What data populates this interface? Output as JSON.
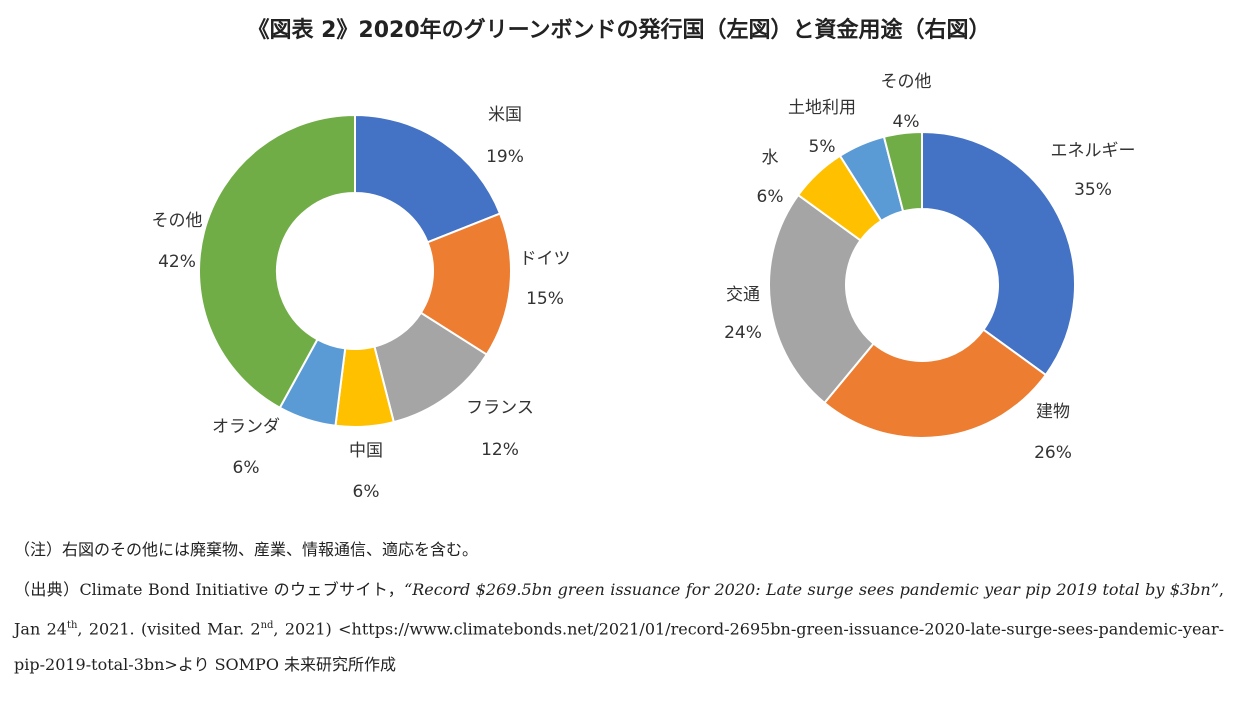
{
  "title": "《図表 2》2020年のグリーンボンドの発行国（左図）と資金用途（右図）",
  "chart_data": [
    {
      "type": "pie",
      "donut": true,
      "categories": [
        "米国",
        "ドイツ",
        "フランス",
        "中国",
        "オランダ",
        "その他"
      ],
      "values": [
        19,
        15,
        12,
        6,
        6,
        42
      ],
      "labels": [
        "19%",
        "15%",
        "12%",
        "6%",
        "6%",
        "42%"
      ],
      "colors": [
        "#4472C4",
        "#ED7D31",
        "#A5A5A5",
        "#FFC000",
        "#5B9BD5",
        "#70AD47"
      ],
      "legend": "none"
    },
    {
      "type": "pie",
      "donut": true,
      "categories": [
        "エネルギー",
        "建物",
        "交通",
        "水",
        "土地利用",
        "その他"
      ],
      "values": [
        35,
        26,
        24,
        6,
        5,
        4
      ],
      "labels": [
        "35%",
        "26%",
        "24%",
        "6%",
        "5%",
        "4%"
      ],
      "colors": [
        "#4472C4",
        "#ED7D31",
        "#A5A5A5",
        "#FFC000",
        "#5B9BD5",
        "#70AD47"
      ],
      "legend": "none"
    }
  ],
  "notes": {
    "note": "（注）右図のその他には廃棄物、産業、情報通信、適応を含む。",
    "source_prefix": "（出典）Climate Bond Initiative のウェブサイト，",
    "source_title": "“Record $269.5bn green issuance for 2020: Late surge sees pandemic year pip 2019 total by $3bn”",
    "source_date_a": ", Jan 24",
    "source_sup_a": "th",
    "source_date_b": ", 2021. (visited Mar. 2",
    "source_sup_b": "nd",
    "source_date_c": ", 2021) <https://www.climatebonds.net/2021/01/record-2695bn-green-issuance-2020-late-surge-sees-pandemic-year-pip-2019-total-3bn>より SOMPO 未来研究所作成"
  }
}
